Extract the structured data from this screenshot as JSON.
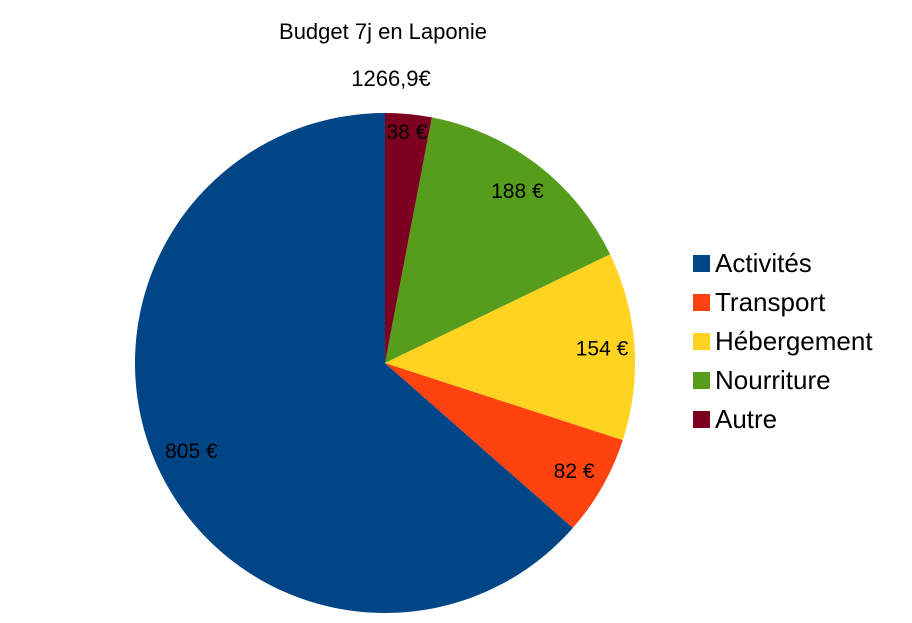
{
  "chart_data": {
    "type": "pie",
    "title": "Budget 7j en Laponie",
    "total_label": "1266,9€",
    "categories": [
      "Activités",
      "Transport",
      "Hébergement",
      "Nourriture",
      "Autre"
    ],
    "values": [
      805,
      82,
      154,
      188,
      38
    ],
    "labels": [
      "805 €",
      "82 €",
      "154 €",
      "188 €",
      "38 €"
    ],
    "colors": [
      "#004586",
      "#FF420E",
      "#FFD320",
      "#579D1C",
      "#7E0021"
    ],
    "total_value": 1266.9,
    "legend_position": "right",
    "start_angle_deg": 90,
    "direction": "counterclockwise",
    "label_radius_frac": [
      0.85,
      0.87,
      0.87,
      0.87,
      0.93
    ],
    "label_color": "#000000",
    "background_color": "#ffffff"
  }
}
